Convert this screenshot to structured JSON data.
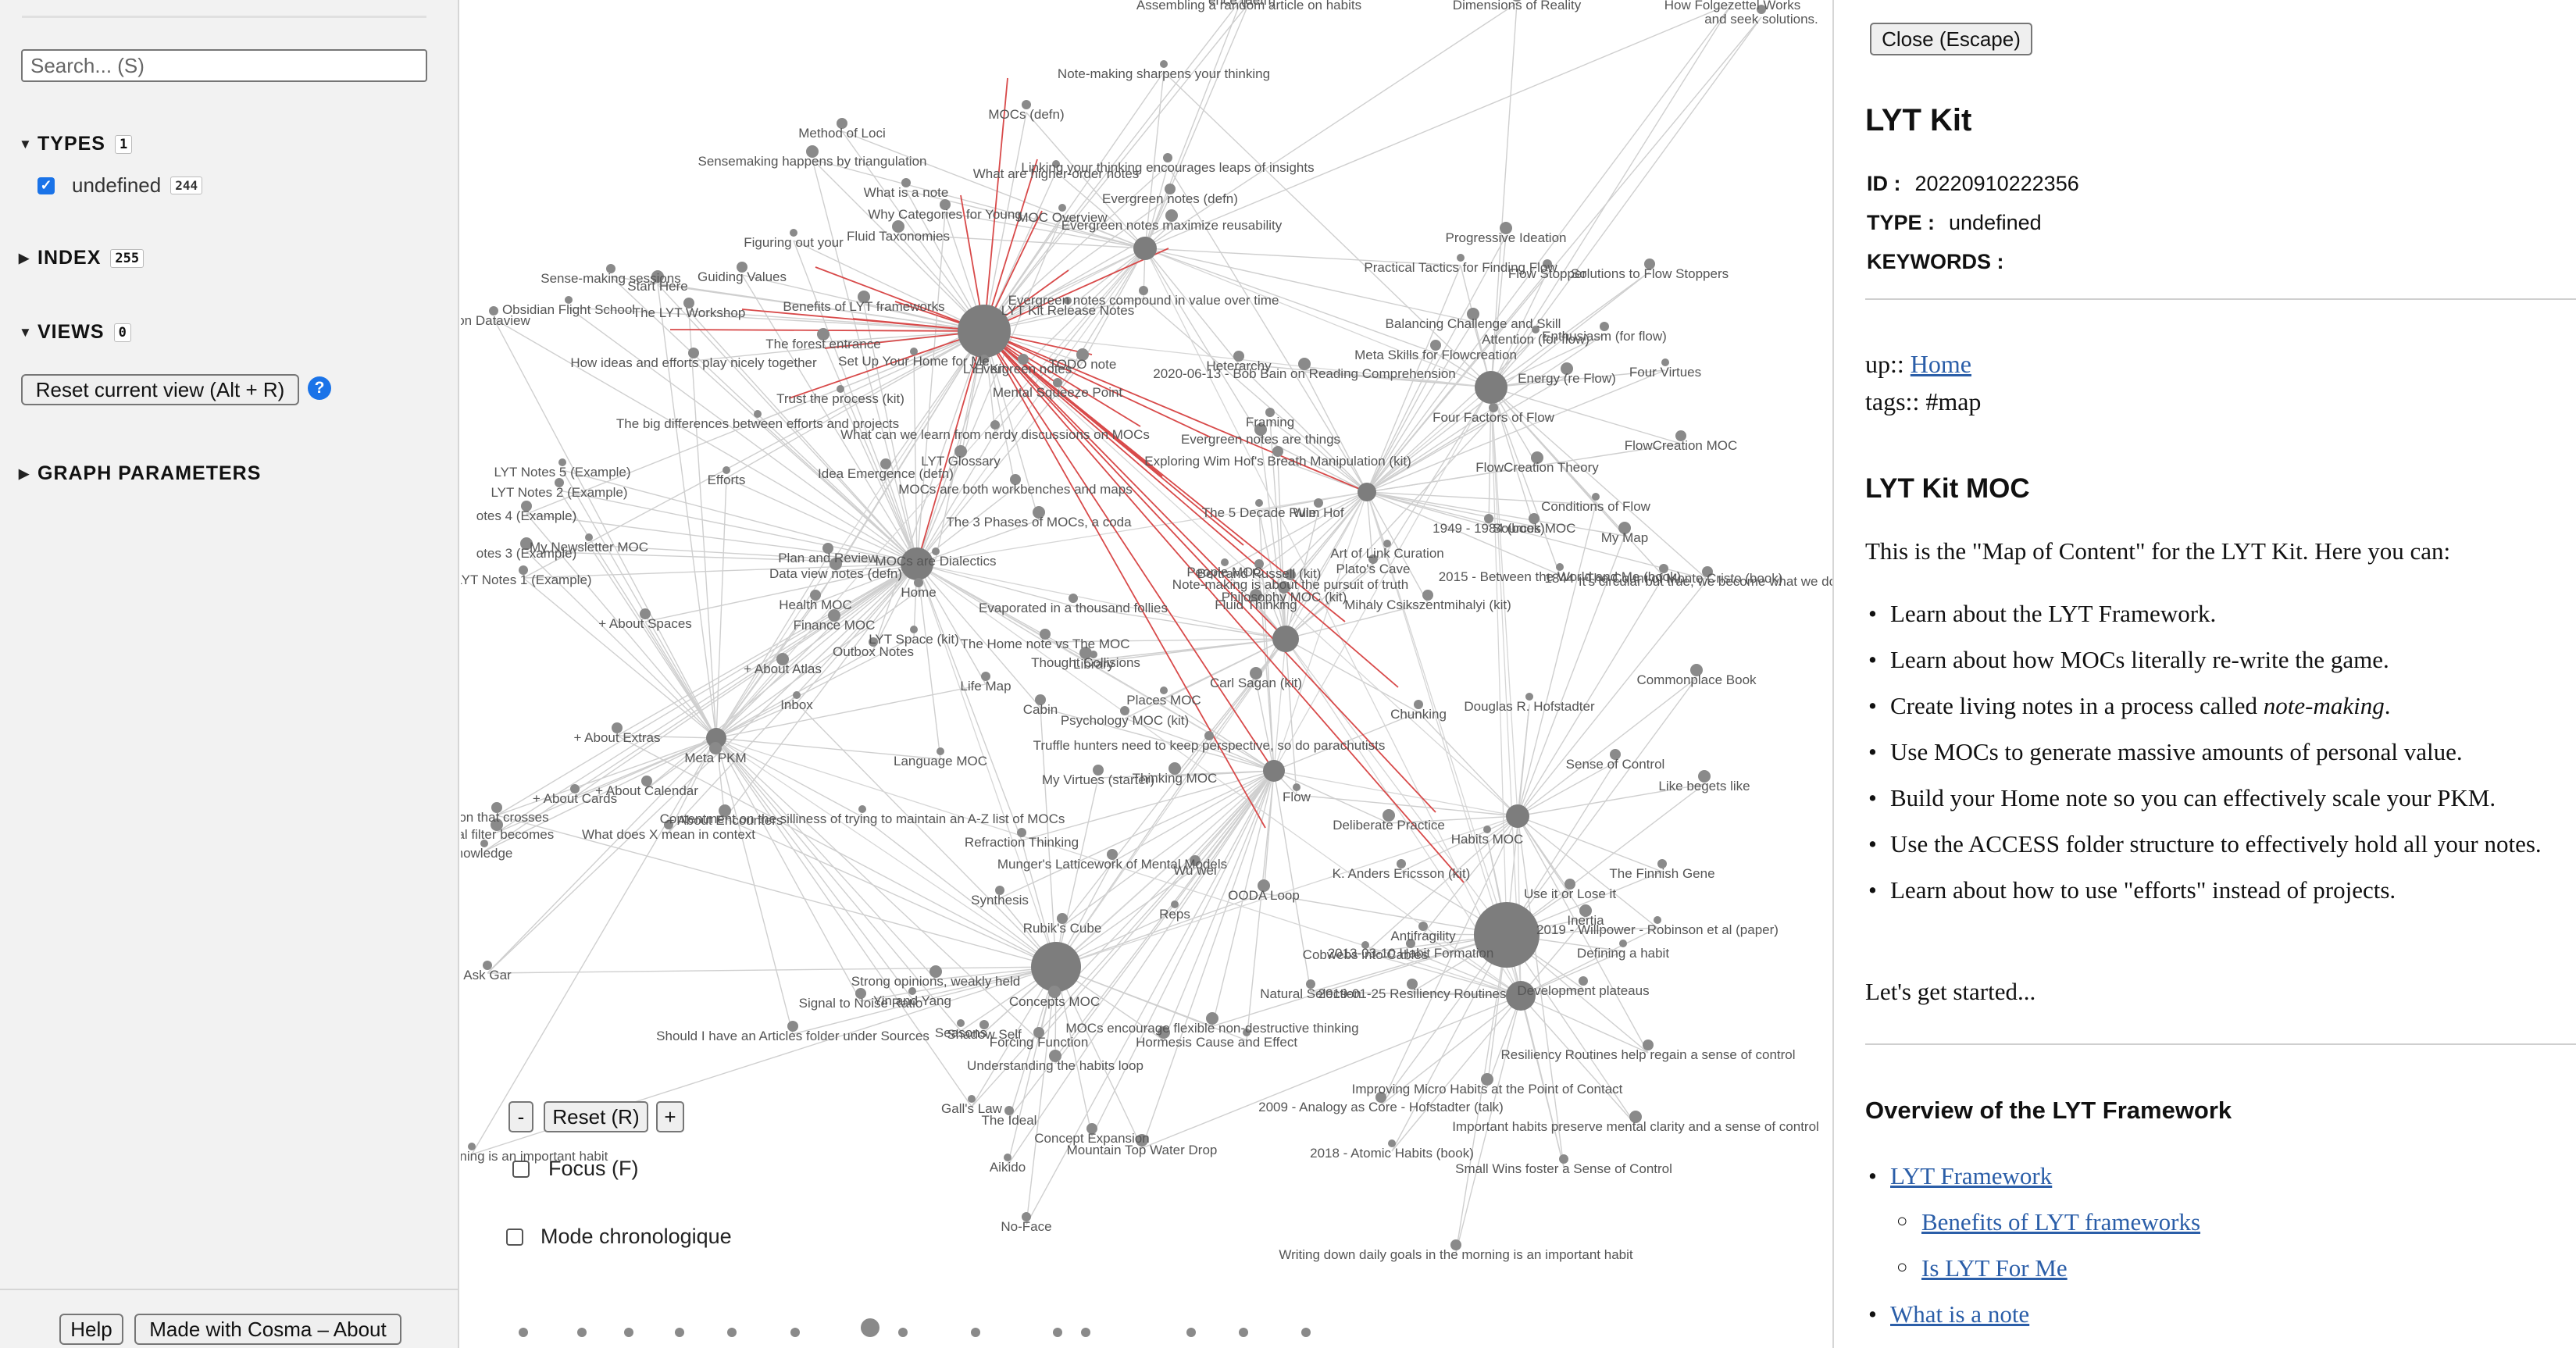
{
  "sidebar": {
    "search_placeholder": "Search... (S)",
    "types": {
      "label": "TYPES",
      "count": "1",
      "items": [
        {
          "label": "undefined",
          "count": "244",
          "checked": true
        }
      ]
    },
    "index": {
      "label": "INDEX",
      "count": "255"
    },
    "views": {
      "label": "VIEWS",
      "count": "0"
    },
    "reset_view_label": "Reset current view (Alt + R)",
    "help_icon_glyph": "?",
    "graph_params_label": "GRAPH PARAMETERS",
    "help_label": "Help",
    "about_label": "Made with Cosma – About"
  },
  "graph": {
    "zoom_out_label": "-",
    "reset_label": "Reset (R)",
    "zoom_in_label": "+",
    "focus_label": "Focus (F)",
    "chrono_label": "Mode chronologique",
    "node_labels": [
      "Note-making sharpens your thinking",
      "MOCs (defn)",
      "Method of Loci",
      "Sensemaking happens by triangulation",
      "What are higher-order notes",
      "What is a note",
      "Why Categories for Young",
      "Fluid Taxonomies",
      "Figuring out your",
      "Linking your thinking encourages leaps of insights",
      "Evergreen notes (defn)",
      "Evergreen notes maximize reusability",
      "MOC Overview",
      "Sense-making sessions",
      "Guiding Values",
      "Start Here",
      "Obsidian Flight School",
      "on Dataview",
      "The LYT Workshop",
      "Benefits of LYT frameworks",
      "LYT Kit Release Notes",
      "Evergreen notes compound in value over time",
      "How ideas and efforts play nicely together",
      "The forest entrance",
      "Set Up Your Home for Me",
      "LYT Kit",
      "Evergreen notes",
      "TODO note",
      "Trust the process (kit)",
      "Mental Squeeze Point",
      "Heterarchy",
      "2020-06-13 - Bob Bain on Reading Comprehension",
      "The big differences between efforts and projects",
      "What can we learn from nerdy discussions on MOCs",
      "Idea Emergence (defn)",
      "LYT Glossary",
      "Efforts",
      "Framing",
      "Exploring Wim Hof's Breath Manipulation (kit)",
      "Evergreen notes are things",
      "LYT Notes 5 (Example)",
      "LYT Notes 2 (Example)",
      "otes 4 (Example)",
      "otes 3 (Example)",
      "My Newsletter MOC",
      "LYT Notes 1 (Example)",
      "MOCs are both workbenches and maps",
      "The 3 Phases of MOCs, a coda",
      "The 5 Decade Rule",
      "Wim Hof",
      "Plan and Review",
      "Data view notes (defn)",
      "MOCs are Dialectics",
      "Home",
      "Health MOC",
      "Finance MOC",
      "LYT Space (kit)",
      "Outbox Notes",
      "+ About Spaces",
      "+ About Atlas",
      "Inbox",
      "Evaporated in a thousand follies",
      "The Home note vs The MOC",
      "Thought Collisions",
      "Library",
      "Life Map",
      "Cabin",
      "Philosophy MOC (kit)",
      "People MOC",
      "Bertrand Russell (kit)",
      "Note-making is about the pursuit of truth",
      "Fluid Thinking",
      "Art of Link Curation",
      "Plato's Cave",
      "Mihaly Csikszentmihalyi (kit)",
      "Carl Sagan (kit)",
      "Places MOC",
      "Psychology MOC (kit)",
      "+ About Extras",
      "Meta PKM",
      "Language MOC",
      "Truffle hunters need to keep perspective, so do parachutists",
      "My Virtues (starter)",
      "Thinking MOC",
      "Flow",
      "+ About Cards",
      "+ About Calendar",
      "+ About Encounters",
      "Contentment on the silliness of trying to maintain an A-Z list of MOCs",
      "What does X mean in context",
      "ation that crosses",
      "ional filter becomes",
      "nowledge",
      "Refraction Thinking",
      "Munger's Latticework of Mental Models",
      "Deliberate Practice",
      "Habits MOC",
      "Synthesis",
      "Wu wei",
      "OODA Loop",
      "Reps",
      "K. Anders Ericsson (kit)",
      "Rubik's Cube",
      "Strong opinions, weakly held",
      "Yin and Yang",
      "Antifragility",
      "Signal to Noise Ratio",
      "Concepts MOC",
      "Cobwebs into Cables",
      "2013-03-10 Habit Formation",
      "Should I have an Articles folder under Sources",
      "MOCs encourage flexible non-destructive thinking",
      "Seasons",
      "Shadow Self",
      "Forcing Function",
      "Hormesis",
      "Cause and Effect",
      "Natural Selection",
      "2019-01-25 Resiliency Routines",
      "Understanding the habits loop",
      "Gall's Law",
      "The Ideal",
      "Concept Expansion",
      "Mountain Top Water Drop",
      "Aikido",
      "No-Face",
      "2009 - Analogy as Core - Hofstadter (talk)",
      "Improving Micro Habits at the Point of Contact",
      "2018 - Atomic Habits (book)",
      "Small Wins foster a Sense of Control",
      "Writing down daily goals in the morning is an important habit",
      "Progressive Ideation",
      "Practical Tactics for Finding Flow",
      "Flow Stopper",
      "Solutions to Flow Stoppers",
      "Balancing Challenge and Skill",
      "Attention (for flow)",
      "Enthusiasm (for flow)",
      "Meta Skills for Flowcreation",
      "Energy (re Flow)",
      "Four Virtues",
      "Four Factors of Flow",
      "FlowCreation MOC",
      "FlowCreation Theory",
      "Conditions of Flow",
      "1949 - 1984 (book)",
      "Sources MOC",
      "My Map",
      "2015 - Between the World and Me (book)",
      "1844 - The Count of Monte Cristo (book)",
      "It's circular but true, we become what we do",
      "Commonplace Book",
      "Douglas R. Hofstadter",
      "Chunking",
      "Sense of Control",
      "Like begets like",
      "2019 - Willpower - Robinson et al (paper)",
      "The Finnish Gene",
      "Use it or Lose it",
      "Inertia",
      "Defining a habit",
      "Development plateaus",
      "Resiliency Routines help regain a sense of control",
      "Important habits preserve mental clarity and a sense of control",
      "Journaling in the morning is an important habit",
      "Ask Gar",
      "ence (defn)",
      "Dimensions of Reality",
      "How Folgezettel Works",
      "and seek solutions.",
      "Assembling a random article on habits",
      "(kit)"
    ]
  },
  "panel": {
    "close_label": "Close (Escape)",
    "title": "LYT Kit",
    "id_label": "ID :",
    "id_value": "20220910222356",
    "type_label": "TYPE :",
    "type_value": "undefined",
    "keywords_label": "KEYWORDS :",
    "up_prefix": "up:: ",
    "up_link": "Home",
    "tags_line": "tags:: #map",
    "moc_heading": "LYT Kit MOC",
    "intro": "This is the \"Map of Content\" for the LYT Kit. Here you can:",
    "bullets": [
      {
        "text": "Learn about the LYT Framework."
      },
      {
        "text": "Learn about how MOCs literally re-write the game."
      },
      {
        "pre": "Create living notes in a process called ",
        "em": "note-making",
        "post": "."
      },
      {
        "text": "Use MOCs to generate massive amounts of personal value."
      },
      {
        "text": "Build your Home note so you can effectively scale your PKM."
      },
      {
        "text": "Use the ACCESS folder structure to effectively hold all your notes."
      },
      {
        "text": "Learn about how to use \"efforts\" instead of projects."
      }
    ],
    "outro": "Let's get started...",
    "overview_heading": "Overview of the LYT Framework",
    "overview_links": [
      {
        "label": "LYT Framework",
        "level": 1
      },
      {
        "label": "Benefits of LYT frameworks",
        "level": 2
      },
      {
        "label": "Is LYT For Me",
        "level": 2
      },
      {
        "label": "What is a note",
        "level": 1
      }
    ]
  }
}
